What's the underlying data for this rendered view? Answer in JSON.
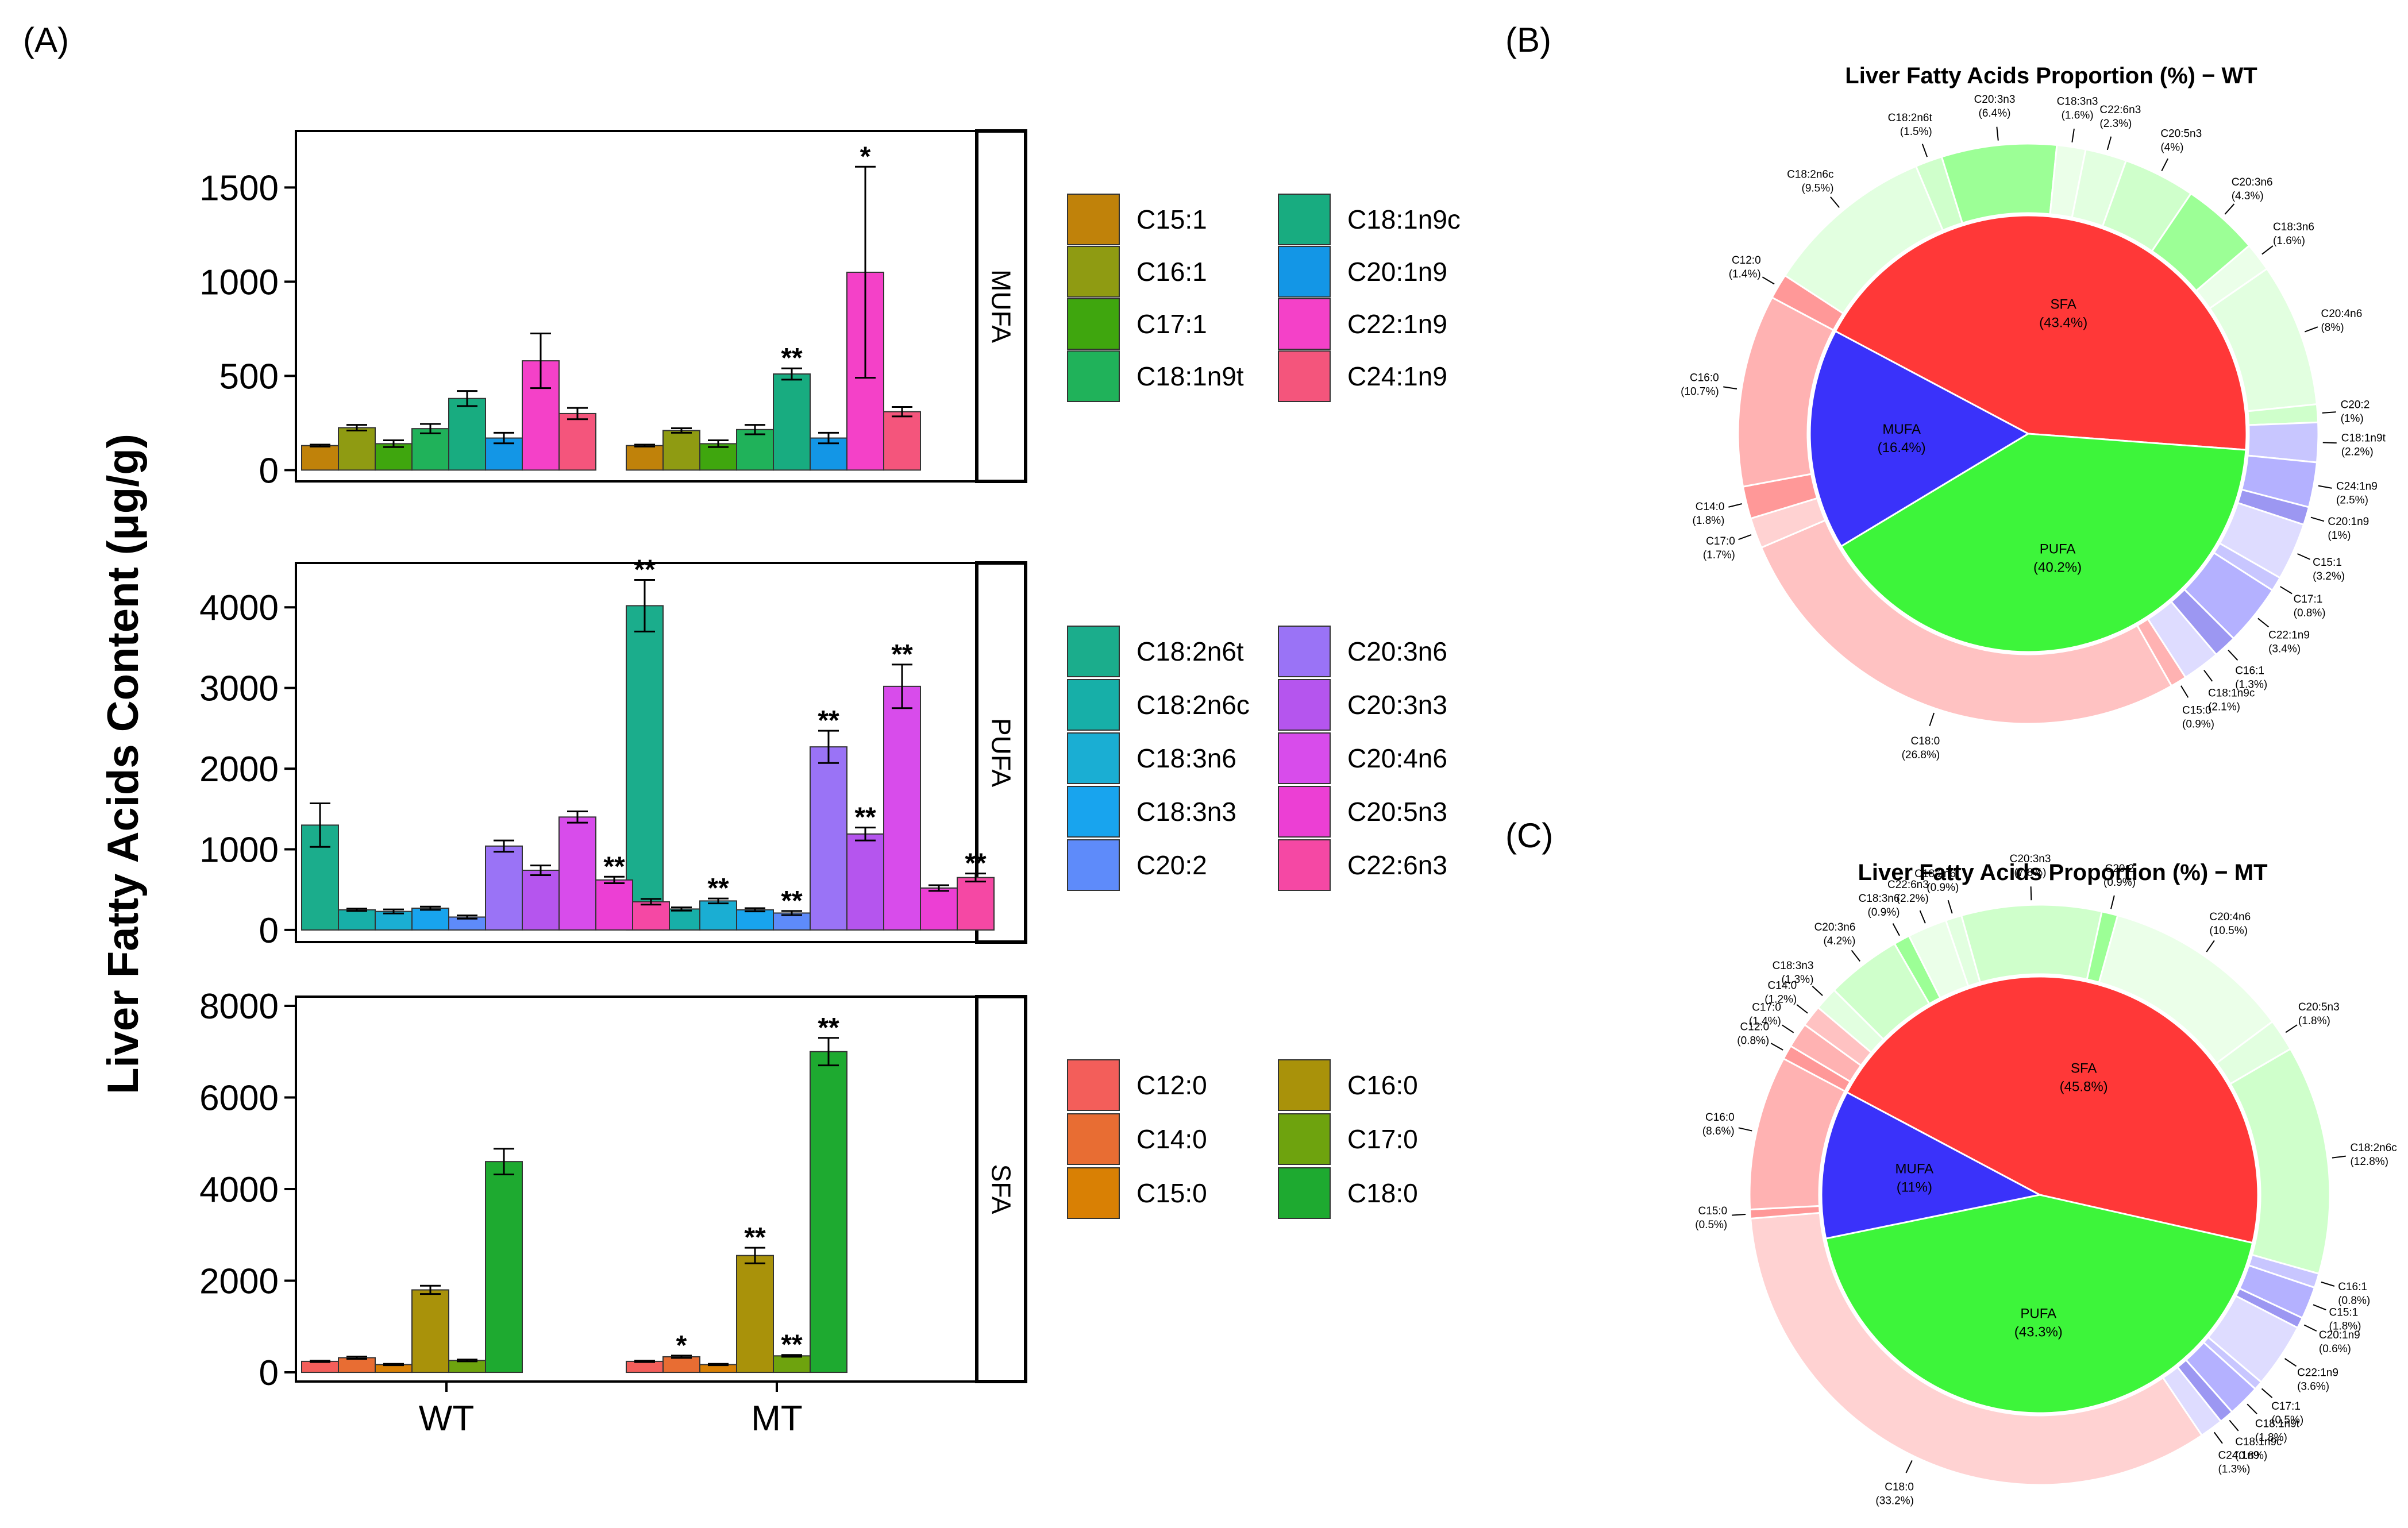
{
  "panel_labels": {
    "a": "(A)",
    "b": "(B)",
    "c": "(C)"
  },
  "chart_data": [
    {
      "type": "bar",
      "panel": "(A)",
      "ylabel": "Liver Fatty Acids Content (μg/g)",
      "groups": [
        "WT",
        "MT"
      ],
      "facets": [
        {
          "name": "MUFA",
          "ylim": [
            -60,
            1800
          ],
          "ticks": [
            0,
            500,
            1000,
            1500
          ],
          "series": [
            {
              "name": "C15:1",
              "color": "#C0820A",
              "values": [
                130,
                130
              ],
              "errors": [
                5,
                5
              ],
              "sig": [
                "",
                ""
              ]
            },
            {
              "name": "C16:1",
              "color": "#8F9B12",
              "values": [
                225,
                210
              ],
              "errors": [
                15,
                12
              ],
              "sig": [
                "",
                ""
              ]
            },
            {
              "name": "C17:1",
              "color": "#3FA60E",
              "values": [
                140,
                140
              ],
              "errors": [
                18,
                18
              ],
              "sig": [
                "",
                ""
              ]
            },
            {
              "name": "C18:1n9t",
              "color": "#20B25A",
              "values": [
                220,
                215
              ],
              "errors": [
                25,
                25
              ],
              "sig": [
                "",
                ""
              ]
            },
            {
              "name": "C18:1n9c",
              "color": "#18AC80",
              "values": [
                380,
                510
              ],
              "errors": [
                40,
                30
              ],
              "sig": [
                "",
                "**"
              ]
            },
            {
              "name": "C20:1n9",
              "color": "#1396E6",
              "values": [
                170,
                170
              ],
              "errors": [
                28,
                28
              ],
              "sig": [
                "",
                ""
              ]
            },
            {
              "name": "C22:1n9",
              "color": "#F441C8",
              "values": [
                580,
                1050
              ],
              "errors": [
                145,
                560
              ],
              "sig": [
                "",
                "*"
              ]
            },
            {
              "name": "C24:1n9",
              "color": "#F4557C",
              "values": [
                300,
                310
              ],
              "errors": [
                30,
                25
              ],
              "sig": [
                "",
                ""
              ]
            }
          ]
        },
        {
          "name": "PUFA",
          "ylim": [
            -150,
            4550
          ],
          "ticks": [
            0,
            1000,
            2000,
            3000,
            4000
          ],
          "series": [
            {
              "name": "C18:2n6t",
              "color": "#1BAD8C",
              "values": [
                1300,
                4020
              ],
              "errors": [
                270,
                320
              ],
              "sig": [
                "",
                "**"
              ]
            },
            {
              "name": "C18:2n6c",
              "color": "#17AFA8",
              "values": [
                250,
                260
              ],
              "errors": [
                15,
                20
              ],
              "sig": [
                "",
                ""
              ]
            },
            {
              "name": "C18:3n6",
              "color": "#1AAED3",
              "values": [
                230,
                360
              ],
              "errors": [
                25,
                30
              ],
              "sig": [
                "",
                "**"
              ]
            },
            {
              "name": "C18:3n3",
              "color": "#18A4EE",
              "values": [
                270,
                250
              ],
              "errors": [
                20,
                20
              ],
              "sig": [
                "",
                ""
              ]
            },
            {
              "name": "C20:2",
              "color": "#5E8BFA",
              "values": [
                160,
                210
              ],
              "errors": [
                20,
                25
              ],
              "sig": [
                "",
                "**"
              ]
            },
            {
              "name": "C20:3n6",
              "color": "#9A73F6",
              "values": [
                1040,
                2270
              ],
              "errors": [
                70,
                200
              ],
              "sig": [
                "",
                "**"
              ]
            },
            {
              "name": "C20:3n3",
              "color": "#B555EE",
              "values": [
                740,
                1190
              ],
              "errors": [
                60,
                80
              ],
              "sig": [
                "",
                "**"
              ]
            },
            {
              "name": "C20:4n6",
              "color": "#D84CEB",
              "values": [
                1400,
                3020
              ],
              "errors": [
                70,
                270
              ],
              "sig": [
                "",
                "**"
              ]
            },
            {
              "name": "C20:5n3",
              "color": "#EC3FD4",
              "values": [
                620,
                520
              ],
              "errors": [
                40,
                35
              ],
              "sig": [
                "**",
                ""
              ]
            },
            {
              "name": "C22:6n3",
              "color": "#F548A4",
              "values": [
                350,
                650
              ],
              "errors": [
                35,
                50
              ],
              "sig": [
                "",
                "**"
              ]
            }
          ]
        },
        {
          "name": "SFA",
          "ylim": [
            -200,
            8200
          ],
          "ticks": [
            0,
            2000,
            4000,
            6000,
            8000
          ],
          "series": [
            {
              "name": "C12:0",
              "color": "#F35E5A",
              "values": [
                240,
                240
              ],
              "errors": [
                15,
                15
              ],
              "sig": [
                "",
                ""
              ]
            },
            {
              "name": "C14:0",
              "color": "#E86D33",
              "values": [
                320,
                340
              ],
              "errors": [
                25,
                25
              ],
              "sig": [
                "",
                "*"
              ]
            },
            {
              "name": "C15:0",
              "color": "#D98004",
              "values": [
                170,
                170
              ],
              "errors": [
                15,
                15
              ],
              "sig": [
                "",
                ""
              ]
            },
            {
              "name": "C16:0",
              "color": "#A9920A",
              "values": [
                1800,
                2550
              ],
              "errors": [
                90,
                170
              ],
              "sig": [
                "",
                "**"
              ]
            },
            {
              "name": "C17:0",
              "color": "#6EA30E",
              "values": [
                260,
                360
              ],
              "errors": [
                20,
                20
              ],
              "sig": [
                "",
                "**"
              ]
            },
            {
              "name": "C18:0",
              "color": "#1EAA30",
              "values": [
                4600,
                7000
              ],
              "errors": [
                280,
                300
              ],
              "sig": [
                "",
                "**"
              ]
            }
          ]
        }
      ]
    },
    {
      "type": "pie",
      "panel": "(B)",
      "title": "Liver Fatty Acids Proportion (%) − WT",
      "inner": [
        {
          "name": "SFA",
          "label": "(43.4%)",
          "value": 43.4
        },
        {
          "name": "PUFA",
          "label": "(40.2%)",
          "value": 40.2
        },
        {
          "name": "MUFA",
          "label": "(16.4%)",
          "value": 16.4
        }
      ],
      "outer": [
        {
          "name": "C12:0",
          "label": "(1.4%)",
          "value": 1.4,
          "cls": "SFA"
        },
        {
          "name": "C18:2n6c",
          "label": "(9.5%)",
          "value": 9.5,
          "cls": "PUFA"
        },
        {
          "name": "C18:2n6t",
          "label": "(1.5%)",
          "value": 1.5,
          "cls": "PUFA"
        },
        {
          "name": "C20:3n3",
          "label": "(6.4%)",
          "value": 6.4,
          "cls": "PUFA"
        },
        {
          "name": "C18:3n3",
          "label": "(1.6%)",
          "value": 1.6,
          "cls": "PUFA"
        },
        {
          "name": "C22:6n3",
          "label": "(2.3%)",
          "value": 2.3,
          "cls": "PUFA"
        },
        {
          "name": "C20:5n3",
          "label": "(4%)",
          "value": 4,
          "cls": "PUFA"
        },
        {
          "name": "C20:3n6",
          "label": "(4.3%)",
          "value": 4.3,
          "cls": "PUFA"
        },
        {
          "name": "C18:3n6",
          "label": "(1.6%)",
          "value": 1.6,
          "cls": "PUFA"
        },
        {
          "name": "C20:4n6",
          "label": "(8%)",
          "value": 8,
          "cls": "PUFA"
        },
        {
          "name": "C20:2",
          "label": "(1%)",
          "value": 1,
          "cls": "PUFA"
        },
        {
          "name": "C18:1n9t",
          "label": "(2.2%)",
          "value": 2.2,
          "cls": "MUFA"
        },
        {
          "name": "C24:1n9",
          "label": "(2.5%)",
          "value": 2.5,
          "cls": "MUFA"
        },
        {
          "name": "C20:1n9",
          "label": "(1%)",
          "value": 1,
          "cls": "MUFA"
        },
        {
          "name": "C15:1",
          "label": "(3.2%)",
          "value": 3.2,
          "cls": "MUFA"
        },
        {
          "name": "C17:1",
          "label": "(0.8%)",
          "value": 0.8,
          "cls": "MUFA"
        },
        {
          "name": "C22:1n9",
          "label": "(3.4%)",
          "value": 3.4,
          "cls": "MUFA"
        },
        {
          "name": "C16:1",
          "label": "(1.3%)",
          "value": 1.3,
          "cls": "MUFA"
        },
        {
          "name": "C18:1n9c",
          "label": "(2.1%)",
          "value": 2.1,
          "cls": "MUFA"
        },
        {
          "name": "C15:0",
          "label": "(0.9%)",
          "value": 0.9,
          "cls": "SFA"
        },
        {
          "name": "C18:0",
          "label": "(26.8%)",
          "value": 26.8,
          "cls": "SFA"
        },
        {
          "name": "C17:0",
          "label": "(1.7%)",
          "value": 1.7,
          "cls": "SFA"
        },
        {
          "name": "C14:0",
          "label": "(1.8%)",
          "value": 1.8,
          "cls": "SFA"
        },
        {
          "name": "C16:0",
          "label": "(10.7%)",
          "value": 10.7,
          "cls": "SFA"
        }
      ]
    },
    {
      "type": "pie",
      "panel": "(C)",
      "title": "Liver Fatty Acids Proportion (%) − MT",
      "inner": [
        {
          "name": "SFA",
          "label": "(45.8%)",
          "value": 45.8
        },
        {
          "name": "PUFA",
          "label": "(43.3%)",
          "value": 43.3
        },
        {
          "name": "MUFA",
          "label": "(11%)",
          "value": 11
        }
      ],
      "outer": [
        {
          "name": "C12:0",
          "label": "(0.8%)",
          "value": 0.8,
          "cls": "SFA"
        },
        {
          "name": "C17:0",
          "label": "(1.4%)",
          "value": 1.4,
          "cls": "SFA"
        },
        {
          "name": "C14:0",
          "label": "(1.2%)",
          "value": 1.2,
          "cls": "SFA"
        },
        {
          "name": "C18:3n3",
          "label": "(1.3%)",
          "value": 1.3,
          "cls": "PUFA"
        },
        {
          "name": "C20:3n6",
          "label": "(4.2%)",
          "value": 4.2,
          "cls": "PUFA"
        },
        {
          "name": "C18:3n6",
          "label": "(0.9%)",
          "value": 0.9,
          "cls": "PUFA"
        },
        {
          "name": "C22:6n3",
          "label": "(2.2%)",
          "value": 2.2,
          "cls": "PUFA"
        },
        {
          "name": "C18:2n6t",
          "label": "(0.9%)",
          "value": 0.9,
          "cls": "PUFA"
        },
        {
          "name": "C20:3n3",
          "label": "(7.8%)",
          "value": 7.8,
          "cls": "PUFA"
        },
        {
          "name": "C20:2",
          "label": "(0.9%)",
          "value": 0.9,
          "cls": "PUFA"
        },
        {
          "name": "C20:4n6",
          "label": "(10.5%)",
          "value": 10.5,
          "cls": "PUFA"
        },
        {
          "name": "C20:5n3",
          "label": "(1.8%)",
          "value": 1.8,
          "cls": "PUFA"
        },
        {
          "name": "C18:2n6c",
          "label": "(12.8%)",
          "value": 12.8,
          "cls": "PUFA"
        },
        {
          "name": "C16:1",
          "label": "(0.8%)",
          "value": 0.8,
          "cls": "MUFA"
        },
        {
          "name": "C15:1",
          "label": "(1.8%)",
          "value": 1.8,
          "cls": "MUFA"
        },
        {
          "name": "C20:1n9",
          "label": "(0.6%)",
          "value": 0.6,
          "cls": "MUFA"
        },
        {
          "name": "C22:1n9",
          "label": "(3.6%)",
          "value": 3.6,
          "cls": "MUFA"
        },
        {
          "name": "C17:1",
          "label": "(0.5%)",
          "value": 0.5,
          "cls": "MUFA"
        },
        {
          "name": "C18:1n9t",
          "label": "(1.8%)",
          "value": 1.8,
          "cls": "MUFA"
        },
        {
          "name": "C18:1n9c",
          "label": "(0.8%)",
          "value": 0.8,
          "cls": "MUFA"
        },
        {
          "name": "C24:1n9",
          "label": "(1.3%)",
          "value": 1.3,
          "cls": "MUFA"
        },
        {
          "name": "C18:0",
          "label": "(33.2%)",
          "value": 33.2,
          "cls": "SFA"
        },
        {
          "name": "C15:0",
          "label": "(0.5%)",
          "value": 0.5,
          "cls": "SFA"
        },
        {
          "name": "C16:0",
          "label": "(8.6%)",
          "value": 8.6,
          "cls": "SFA"
        }
      ]
    }
  ]
}
